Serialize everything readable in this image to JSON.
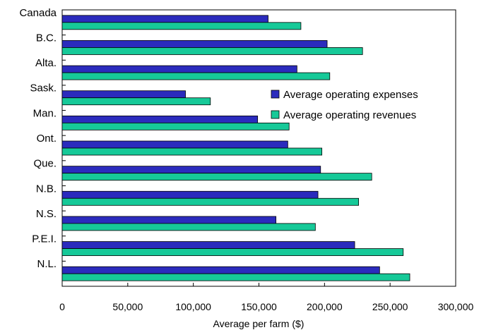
{
  "chart_data": {
    "type": "bar",
    "orientation": "horizontal",
    "categories": [
      "Canada",
      "B.C.",
      "Alta.",
      "Sask.",
      "Man.",
      "Ont.",
      "Que.",
      "N.B.",
      "N.S.",
      "P.E.I.",
      "N.L."
    ],
    "series": [
      {
        "name": "Average operating expenses",
        "color": "#2b2bbd",
        "values": [
          157000,
          202000,
          179000,
          94000,
          149000,
          172000,
          197000,
          195000,
          163000,
          223000,
          242000
        ]
      },
      {
        "name": "Average operating revenues",
        "color": "#16c998",
        "values": [
          182000,
          229000,
          204000,
          113000,
          173000,
          198000,
          236000,
          226000,
          193000,
          260000,
          265000
        ]
      }
    ],
    "xlabel": "Average per farm ($)",
    "xlim": [
      0,
      300000
    ],
    "xticks": [
      0,
      50000,
      100000,
      150000,
      200000,
      250000,
      300000
    ],
    "xtick_labels": [
      "0",
      "50,000",
      "100,000",
      "150,000",
      "200,000",
      "250,000",
      "300,000"
    ],
    "grid": false,
    "legend_position": "right"
  }
}
